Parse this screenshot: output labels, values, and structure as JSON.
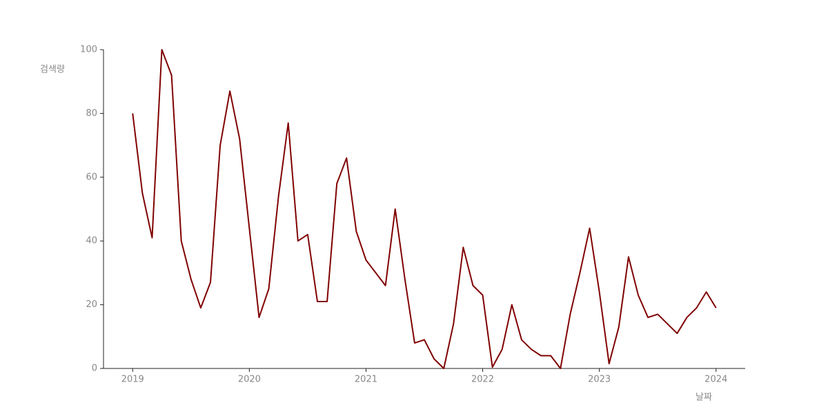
{
  "chart_data": {
    "type": "line",
    "y_label": "검색량",
    "x_label": "날짜",
    "x": [
      2019,
      2019.0833,
      2019.1667,
      2019.25,
      2019.3333,
      2019.4167,
      2019.5,
      2019.5833,
      2019.6667,
      2019.75,
      2019.8333,
      2019.9167,
      2020,
      2020.0833,
      2020.1667,
      2020.25,
      2020.3333,
      2020.4167,
      2020.5,
      2020.5833,
      2020.6667,
      2020.75,
      2020.8333,
      2020.9167,
      2021,
      2021.0833,
      2021.1667,
      2021.25,
      2021.3333,
      2021.4167,
      2021.5,
      2021.5833,
      2021.6667,
      2021.75,
      2021.8333,
      2021.9167,
      2022,
      2022.0833,
      2022.1667,
      2022.25,
      2022.3333,
      2022.4167,
      2022.5,
      2022.5833,
      2022.6667,
      2022.75,
      2022.8333,
      2022.9167,
      2023,
      2023.0833,
      2023.1667,
      2023.25,
      2023.3333,
      2023.4167,
      2023.5,
      2023.5833,
      2023.6667,
      2023.75,
      2023.8333,
      2023.9167,
      2024
    ],
    "series": [
      {
        "color": "#800000",
        "values": [
          80,
          55,
          41,
          100,
          92,
          40,
          28,
          19,
          27,
          70,
          87,
          72,
          44,
          16,
          25,
          54,
          77,
          40,
          42,
          21,
          21,
          58,
          66,
          43,
          34,
          30,
          26,
          50,
          28,
          8,
          9,
          3,
          0,
          14,
          38,
          26,
          23,
          0.4,
          6,
          20,
          9,
          6,
          4,
          4,
          0,
          17,
          30,
          44,
          24,
          1.5,
          13,
          35,
          23,
          16,
          17,
          14,
          11,
          16,
          19,
          24,
          19
        ]
      }
    ],
    "xlim": [
      2018.75,
      2024.25
    ],
    "xticks": [
      2019,
      2020,
      2021,
      2022,
      2023,
      2024
    ],
    "ylim": [
      0,
      100
    ],
    "yticks": [
      0,
      20,
      40,
      60,
      80,
      100
    ],
    "grid": false
  }
}
